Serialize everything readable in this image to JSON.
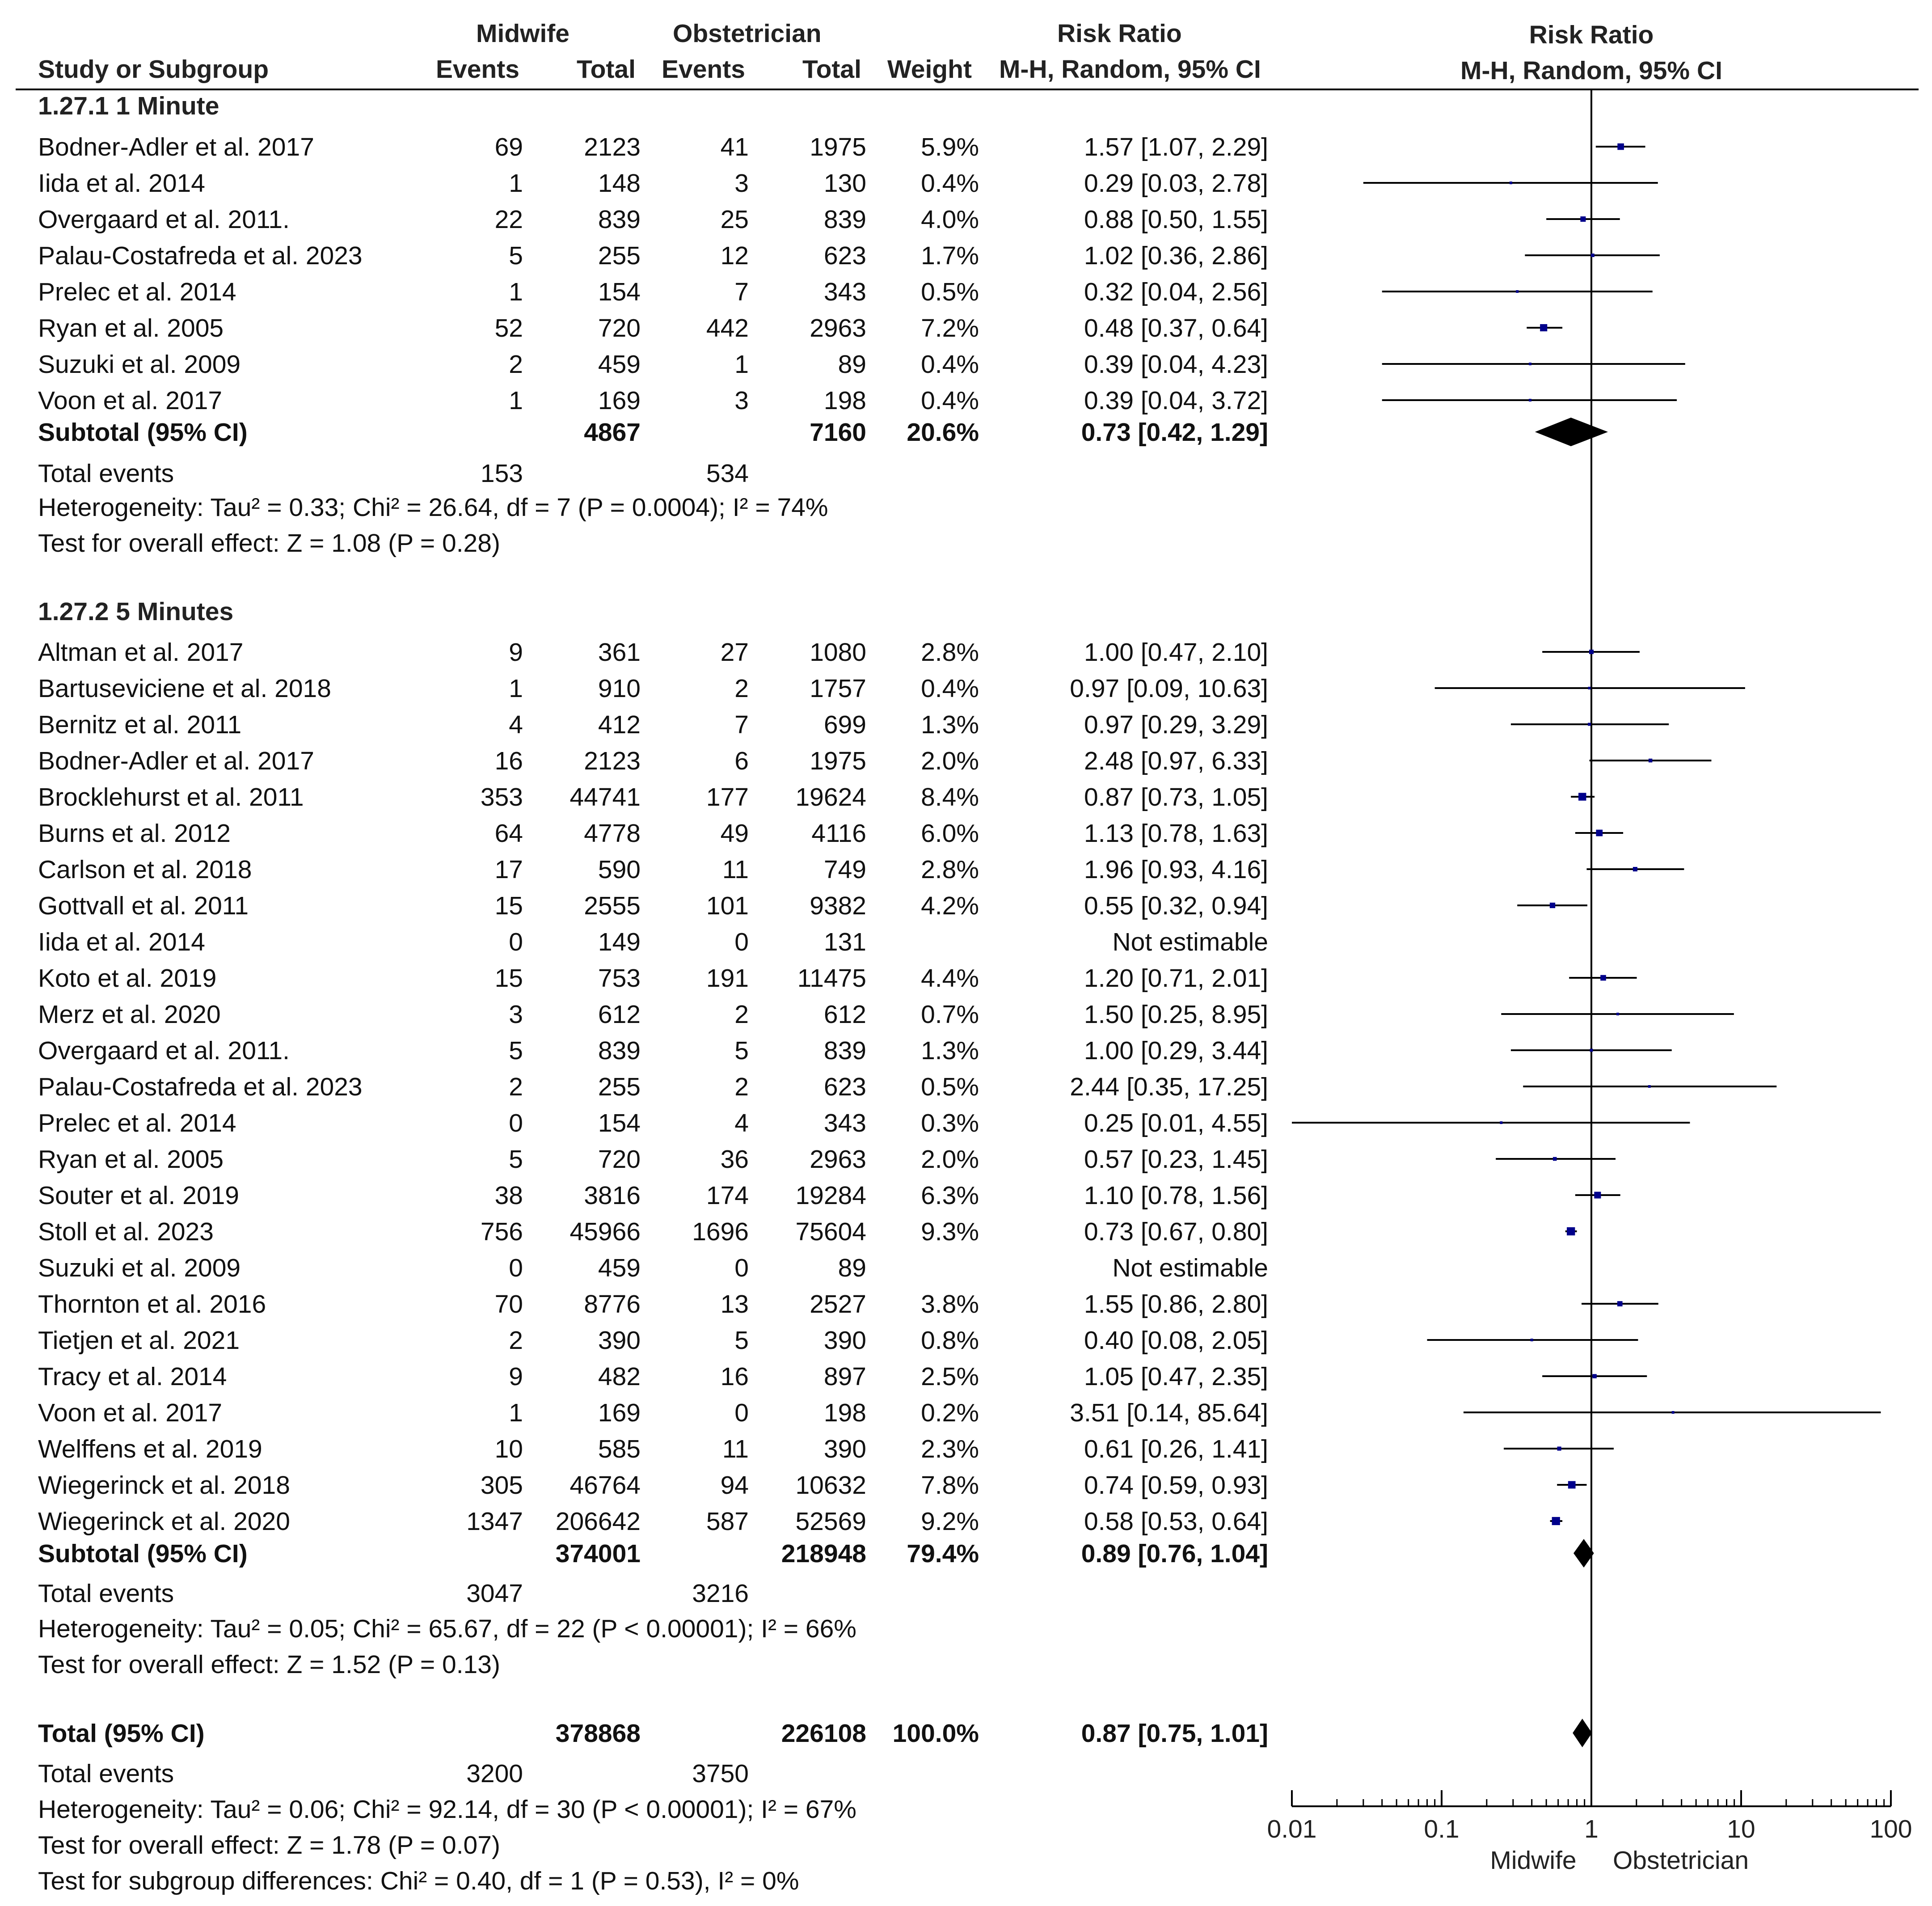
{
  "header": {
    "group1": "Midwife",
    "group2": "Obstetrician",
    "rr_group": "Risk Ratio",
    "plot_group": "Risk Ratio",
    "study_col": "Study or Subgroup",
    "events_col": "Events",
    "total_col": "Total",
    "events2_col": "Events",
    "total2_col": "Total",
    "weight_col": "Weight",
    "rr_col": "M-H, Random, 95% CI",
    "plot_col": "M-H, Random, 95% CI"
  },
  "subgroup1": {
    "title": "1.27.1 1 Minute",
    "subtotal": {
      "label": "Subtotal (95% CI)",
      "m_total": "4867",
      "o_total": "7160",
      "weight": "20.6%",
      "rr": "0.73 [0.42, 1.29]"
    },
    "total_events": {
      "label": "Total events",
      "m": "153",
      "o": "534"
    },
    "heterogeneity": "Heterogeneity: Tau² = 0.33; Chi² = 26.64, df = 7 (P = 0.0004); I² = 74%",
    "overall": "Test for overall effect: Z = 1.08 (P = 0.28)"
  },
  "subgroup2": {
    "title": "1.27.2 5 Minutes",
    "subtotal": {
      "label": "Subtotal (95% CI)",
      "m_total": "374001",
      "o_total": "218948",
      "weight": "79.4%",
      "rr": "0.89 [0.76, 1.04]"
    },
    "total_events": {
      "label": "Total events",
      "m": "3047",
      "o": "3216"
    },
    "heterogeneity": "Heterogeneity: Tau² = 0.05; Chi² = 65.67, df = 22 (P < 0.00001); I² = 66%",
    "overall": "Test for overall effect: Z = 1.52 (P = 0.13)"
  },
  "total": {
    "label": "Total (95% CI)",
    "m_total": "378868",
    "o_total": "226108",
    "weight": "100.0%",
    "rr": "0.87 [0.75, 1.01]",
    "events_label": "Total events",
    "m_events": "3200",
    "o_events": "3750",
    "heterogeneity": "Heterogeneity: Tau² = 0.06; Chi² = 92.14, df = 30 (P < 0.00001); I² = 67%",
    "overall": "Test for overall effect: Z = 1.78 (P = 0.07)",
    "subgroup_diff": "Test for subgroup differences: Chi² = 0.40, df = 1 (P = 0.53), I² = 0%"
  },
  "axis": {
    "ticks": [
      "0.01",
      "0.1",
      "1",
      "10",
      "100"
    ],
    "favours_left": "Midwife",
    "favours_right": "Obstetrician"
  },
  "colors": {
    "marker": "#00008b",
    "line": "#000000",
    "diamond": "#000000"
  },
  "chart_data": {
    "type": "forest",
    "title": "Risk Ratio M-H, Random, 95% CI",
    "xscale": "log",
    "xlim": [
      0.01,
      100
    ],
    "xlabel_left": "Midwife",
    "xlabel_right": "Obstetrician",
    "subgroups": [
      {
        "name": "1.27.1 1 Minute",
        "studies": [
          {
            "study": "Bodner-Adler et al. 2017",
            "m_events": "69",
            "m_total": "2123",
            "o_events": "41",
            "o_total": "1975",
            "weight": "5.9%",
            "ci_text": "1.57 [1.07, 2.29]",
            "rr": 1.57,
            "lo": 1.07,
            "hi": 2.29
          },
          {
            "study": "Iida et al. 2014",
            "m_events": "1",
            "m_total": "148",
            "o_events": "3",
            "o_total": "130",
            "weight": "0.4%",
            "ci_text": "0.29 [0.03, 2.78]",
            "rr": 0.29,
            "lo": 0.03,
            "hi": 2.78
          },
          {
            "study": "Overgaard et al. 2011.",
            "m_events": "22",
            "m_total": "839",
            "o_events": "25",
            "o_total": "839",
            "weight": "4.0%",
            "ci_text": "0.88 [0.50, 1.55]",
            "rr": 0.88,
            "lo": 0.5,
            "hi": 1.55
          },
          {
            "study": "Palau-Costafreda et al. 2023",
            "m_events": "5",
            "m_total": "255",
            "o_events": "12",
            "o_total": "623",
            "weight": "1.7%",
            "ci_text": "1.02 [0.36, 2.86]",
            "rr": 1.02,
            "lo": 0.36,
            "hi": 2.86
          },
          {
            "study": "Prelec et al. 2014",
            "m_events": "1",
            "m_total": "154",
            "o_events": "7",
            "o_total": "343",
            "weight": "0.5%",
            "ci_text": "0.32 [0.04, 2.56]",
            "rr": 0.32,
            "lo": 0.04,
            "hi": 2.56
          },
          {
            "study": "Ryan et al. 2005",
            "m_events": "52",
            "m_total": "720",
            "o_events": "442",
            "o_total": "2963",
            "weight": "7.2%",
            "ci_text": "0.48 [0.37, 0.64]",
            "rr": 0.48,
            "lo": 0.37,
            "hi": 0.64
          },
          {
            "study": "Suzuki et al. 2009",
            "m_events": "2",
            "m_total": "459",
            "o_events": "1",
            "o_total": "89",
            "weight": "0.4%",
            "ci_text": "0.39 [0.04, 4.23]",
            "rr": 0.39,
            "lo": 0.04,
            "hi": 4.23
          },
          {
            "study": "Voon et al. 2017",
            "m_events": "1",
            "m_total": "169",
            "o_events": "3",
            "o_total": "198",
            "weight": "0.4%",
            "ci_text": "0.39 [0.04, 3.72]",
            "rr": 0.39,
            "lo": 0.04,
            "hi": 3.72
          }
        ],
        "pooled": {
          "rr": 0.73,
          "lo": 0.42,
          "hi": 1.29
        }
      },
      {
        "name": "1.27.2 5 Minutes",
        "studies": [
          {
            "study": "Altman et al. 2017",
            "m_events": "9",
            "m_total": "361",
            "o_events": "27",
            "o_total": "1080",
            "weight": "2.8%",
            "ci_text": "1.00 [0.47, 2.10]",
            "rr": 1.0,
            "lo": 0.47,
            "hi": 2.1
          },
          {
            "study": "Bartuseviciene et al. 2018",
            "m_events": "1",
            "m_total": "910",
            "o_events": "2",
            "o_total": "1757",
            "weight": "0.4%",
            "ci_text": "0.97 [0.09, 10.63]",
            "rr": 0.97,
            "lo": 0.09,
            "hi": 10.63
          },
          {
            "study": "Bernitz et al. 2011",
            "m_events": "4",
            "m_total": "412",
            "o_events": "7",
            "o_total": "699",
            "weight": "1.3%",
            "ci_text": "0.97 [0.29, 3.29]",
            "rr": 0.97,
            "lo": 0.29,
            "hi": 3.29
          },
          {
            "study": "Bodner-Adler et al. 2017",
            "m_events": "16",
            "m_total": "2123",
            "o_events": "6",
            "o_total": "1975",
            "weight": "2.0%",
            "ci_text": "2.48 [0.97, 6.33]",
            "rr": 2.48,
            "lo": 0.97,
            "hi": 6.33
          },
          {
            "study": "Brocklehurst et al. 2011",
            "m_events": "353",
            "m_total": "44741",
            "o_events": "177",
            "o_total": "19624",
            "weight": "8.4%",
            "ci_text": "0.87 [0.73, 1.05]",
            "rr": 0.87,
            "lo": 0.73,
            "hi": 1.05
          },
          {
            "study": "Burns et al. 2012",
            "m_events": "64",
            "m_total": "4778",
            "o_events": "49",
            "o_total": "4116",
            "weight": "6.0%",
            "ci_text": "1.13 [0.78, 1.63]",
            "rr": 1.13,
            "lo": 0.78,
            "hi": 1.63
          },
          {
            "study": "Carlson et al. 2018",
            "m_events": "17",
            "m_total": "590",
            "o_events": "11",
            "o_total": "749",
            "weight": "2.8%",
            "ci_text": "1.96 [0.93, 4.16]",
            "rr": 1.96,
            "lo": 0.93,
            "hi": 4.16
          },
          {
            "study": "Gottvall  et al. 2011",
            "m_events": "15",
            "m_total": "2555",
            "o_events": "101",
            "o_total": "9382",
            "weight": "4.2%",
            "ci_text": "0.55 [0.32, 0.94]",
            "rr": 0.55,
            "lo": 0.32,
            "hi": 0.94
          },
          {
            "study": "Iida et al. 2014",
            "m_events": "0",
            "m_total": "149",
            "o_events": "0",
            "o_total": "131",
            "weight": "",
            "ci_text": "Not estimable",
            "rr": null,
            "lo": null,
            "hi": null
          },
          {
            "study": "Koto et al. 2019",
            "m_events": "15",
            "m_total": "753",
            "o_events": "191",
            "o_total": "11475",
            "weight": "4.4%",
            "ci_text": "1.20 [0.71, 2.01]",
            "rr": 1.2,
            "lo": 0.71,
            "hi": 2.01
          },
          {
            "study": "Merz et al. 2020",
            "m_events": "3",
            "m_total": "612",
            "o_events": "2",
            "o_total": "612",
            "weight": "0.7%",
            "ci_text": "1.50 [0.25, 8.95]",
            "rr": 1.5,
            "lo": 0.25,
            "hi": 8.95
          },
          {
            "study": "Overgaard et al. 2011.",
            "m_events": "5",
            "m_total": "839",
            "o_events": "5",
            "o_total": "839",
            "weight": "1.3%",
            "ci_text": "1.00 [0.29, 3.44]",
            "rr": 1.0,
            "lo": 0.29,
            "hi": 3.44
          },
          {
            "study": "Palau-Costafreda et al. 2023",
            "m_events": "2",
            "m_total": "255",
            "o_events": "2",
            "o_total": "623",
            "weight": "0.5%",
            "ci_text": "2.44 [0.35, 17.25]",
            "rr": 2.44,
            "lo": 0.35,
            "hi": 17.25
          },
          {
            "study": "Prelec et al. 2014",
            "m_events": "0",
            "m_total": "154",
            "o_events": "4",
            "o_total": "343",
            "weight": "0.3%",
            "ci_text": "0.25 [0.01, 4.55]",
            "rr": 0.25,
            "lo": 0.01,
            "hi": 4.55
          },
          {
            "study": "Ryan et al. 2005",
            "m_events": "5",
            "m_total": "720",
            "o_events": "36",
            "o_total": "2963",
            "weight": "2.0%",
            "ci_text": "0.57 [0.23, 1.45]",
            "rr": 0.57,
            "lo": 0.23,
            "hi": 1.45
          },
          {
            "study": "Souter et al. 2019",
            "m_events": "38",
            "m_total": "3816",
            "o_events": "174",
            "o_total": "19284",
            "weight": "6.3%",
            "ci_text": "1.10 [0.78, 1.56]",
            "rr": 1.1,
            "lo": 0.78,
            "hi": 1.56
          },
          {
            "study": "Stoll et al. 2023",
            "m_events": "756",
            "m_total": "45966",
            "o_events": "1696",
            "o_total": "75604",
            "weight": "9.3%",
            "ci_text": "0.73 [0.67, 0.80]",
            "rr": 0.73,
            "lo": 0.67,
            "hi": 0.8
          },
          {
            "study": "Suzuki et al. 2009",
            "m_events": "0",
            "m_total": "459",
            "o_events": "0",
            "o_total": "89",
            "weight": "",
            "ci_text": "Not estimable",
            "rr": null,
            "lo": null,
            "hi": null
          },
          {
            "study": "Thornton et al. 2016",
            "m_events": "70",
            "m_total": "8776",
            "o_events": "13",
            "o_total": "2527",
            "weight": "3.8%",
            "ci_text": "1.55 [0.86, 2.80]",
            "rr": 1.55,
            "lo": 0.86,
            "hi": 2.8
          },
          {
            "study": "Tietjen et al. 2021",
            "m_events": "2",
            "m_total": "390",
            "o_events": "5",
            "o_total": "390",
            "weight": "0.8%",
            "ci_text": "0.40 [0.08, 2.05]",
            "rr": 0.4,
            "lo": 0.08,
            "hi": 2.05
          },
          {
            "study": "Tracy et al. 2014",
            "m_events": "9",
            "m_total": "482",
            "o_events": "16",
            "o_total": "897",
            "weight": "2.5%",
            "ci_text": "1.05 [0.47, 2.35]",
            "rr": 1.05,
            "lo": 0.47,
            "hi": 2.35
          },
          {
            "study": "Voon et al. 2017",
            "m_events": "1",
            "m_total": "169",
            "o_events": "0",
            "o_total": "198",
            "weight": "0.2%",
            "ci_text": "3.51 [0.14, 85.64]",
            "rr": 3.51,
            "lo": 0.14,
            "hi": 85.64
          },
          {
            "study": "Welffens et al. 2019",
            "m_events": "10",
            "m_total": "585",
            "o_events": "11",
            "o_total": "390",
            "weight": "2.3%",
            "ci_text": "0.61 [0.26, 1.41]",
            "rr": 0.61,
            "lo": 0.26,
            "hi": 1.41
          },
          {
            "study": "Wiegerinck et al. 2018",
            "m_events": "305",
            "m_total": "46764",
            "o_events": "94",
            "o_total": "10632",
            "weight": "7.8%",
            "ci_text": "0.74 [0.59, 0.93]",
            "rr": 0.74,
            "lo": 0.59,
            "hi": 0.93
          },
          {
            "study": "Wiegerinck et al. 2020",
            "m_events": "1347",
            "m_total": "206642",
            "o_events": "587",
            "o_total": "52569",
            "weight": "9.2%",
            "ci_text": "0.58 [0.53, 0.64]",
            "rr": 0.58,
            "lo": 0.53,
            "hi": 0.64
          }
        ],
        "pooled": {
          "rr": 0.89,
          "lo": 0.76,
          "hi": 1.04
        }
      }
    ],
    "overall": {
      "rr": 0.87,
      "lo": 0.75,
      "hi": 1.01
    }
  }
}
